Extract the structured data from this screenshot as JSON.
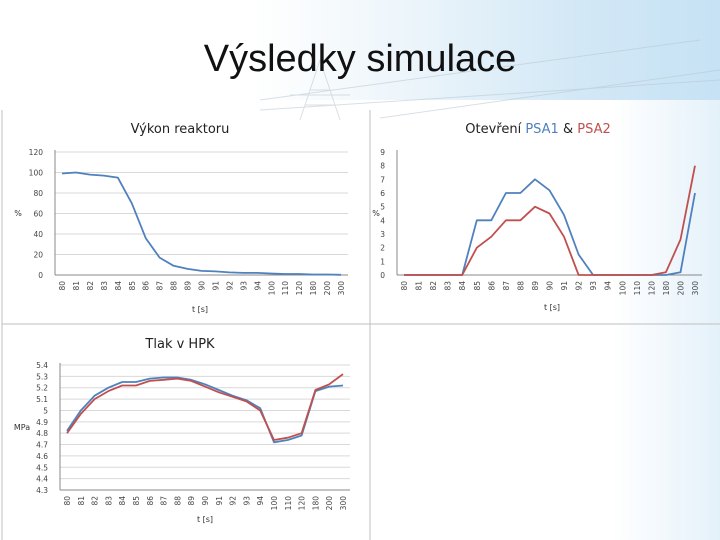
{
  "slide": {
    "title": "Výsledky simulace"
  },
  "colors": {
    "series_blue": "#4f81bd",
    "series_red": "#c0504d",
    "grid": "#d9d9d9",
    "axis": "#888888"
  },
  "chart_data": [
    {
      "type": "line",
      "title": "Výkon reaktoru",
      "xlabel": "t [s]",
      "ylabel": "%",
      "ylim": [
        0,
        120
      ],
      "yticks": [
        "0",
        "20",
        "40",
        "60",
        "80",
        "100",
        "120"
      ],
      "categories": [
        "80",
        "81",
        "82",
        "83",
        "84",
        "85",
        "86",
        "87",
        "88",
        "89",
        "90",
        "91",
        "92",
        "93",
        "94",
        "100",
        "110",
        "120",
        "180",
        "200",
        "300"
      ],
      "grid": true,
      "series": [
        {
          "color": "#4f81bd",
          "values": [
            99,
            100,
            98,
            97,
            95,
            70,
            36,
            17,
            9,
            6,
            4,
            3.5,
            2.5,
            2,
            2,
            1.5,
            1,
            1,
            0.5,
            0.5,
            0.2
          ]
        }
      ]
    },
    {
      "type": "line",
      "title_parts": [
        {
          "text": "Otevření ",
          "color": "#222222"
        },
        {
          "text": "PSA1",
          "color": "#4f81bd"
        },
        {
          "text": " & ",
          "color": "#222222"
        },
        {
          "text": "PSA2",
          "color": "#c0504d"
        }
      ],
      "xlabel": "t [s]",
      "ylabel": "%",
      "ylim": [
        0,
        9
      ],
      "yticks": [
        "0",
        "1",
        "2",
        "3",
        "4",
        "5",
        "6",
        "7",
        "8",
        "9"
      ],
      "categories": [
        "80",
        "81",
        "82",
        "83",
        "84",
        "85",
        "86",
        "87",
        "88",
        "89",
        "90",
        "91",
        "92",
        "93",
        "94",
        "100",
        "110",
        "120",
        "180",
        "200",
        "300"
      ],
      "grid": false,
      "series": [
        {
          "name": "PSA1",
          "color": "#4f81bd",
          "values": [
            0,
            0,
            0,
            0,
            0,
            4,
            4,
            6,
            6,
            7,
            6.2,
            4.4,
            1.5,
            0,
            0,
            0,
            0,
            0,
            0,
            0.2,
            6
          ]
        },
        {
          "name": "PSA2",
          "color": "#c0504d",
          "values": [
            0,
            0,
            0,
            0,
            0,
            2,
            2.8,
            4,
            4,
            5,
            4.5,
            2.8,
            0,
            0,
            0,
            0,
            0,
            0,
            0.2,
            2.6,
            8
          ]
        }
      ]
    },
    {
      "type": "line",
      "title": "Tlak v HPK",
      "xlabel": "t [s]",
      "ylabel": "MPa",
      "ylim": [
        4.3,
        5.4
      ],
      "yticks": [
        "4.3",
        "4.4",
        "4.5",
        "4.6",
        "4.7",
        "4.8",
        "4.9",
        "5",
        "5.1",
        "5.2",
        "5.3",
        "5.4"
      ],
      "categories": [
        "80",
        "81",
        "82",
        "83",
        "84",
        "85",
        "86",
        "87",
        "88",
        "89",
        "90",
        "91",
        "92",
        "93",
        "94",
        "100",
        "110",
        "120",
        "180",
        "200",
        "300"
      ],
      "grid": true,
      "series": [
        {
          "color": "#4f81bd",
          "values": [
            4.82,
            5.0,
            5.13,
            5.2,
            5.25,
            5.25,
            5.28,
            5.29,
            5.29,
            5.27,
            5.23,
            5.18,
            5.13,
            5.09,
            5.02,
            4.72,
            4.74,
            4.78,
            5.17,
            5.21,
            5.22
          ]
        },
        {
          "color": "#c0504d",
          "values": [
            4.8,
            4.97,
            5.1,
            5.17,
            5.22,
            5.22,
            5.26,
            5.27,
            5.28,
            5.26,
            5.21,
            5.16,
            5.12,
            5.08,
            5.0,
            4.74,
            4.76,
            4.8,
            5.18,
            5.23,
            5.32
          ]
        }
      ]
    }
  ]
}
